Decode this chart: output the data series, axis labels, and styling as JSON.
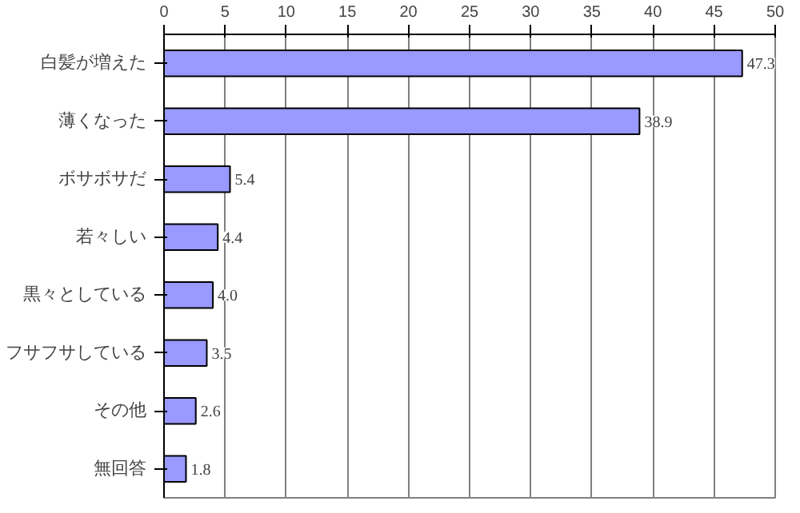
{
  "chart_data": {
    "type": "bar",
    "orientation": "horizontal",
    "categories": [
      "白髪が増えた",
      "薄くなった",
      "ボサボサだ",
      "若々しい",
      "黒々としている",
      "フサフサしている",
      "その他",
      "無回答"
    ],
    "values": [
      47.3,
      38.9,
      5.4,
      4.4,
      4.0,
      3.5,
      2.6,
      1.8
    ],
    "color": "#9999ff",
    "xlim": [
      0,
      50
    ],
    "xticks": [
      0,
      5,
      10,
      15,
      20,
      25,
      30,
      35,
      40,
      45,
      50
    ],
    "grid": "x",
    "value_labels": [
      "47.3",
      "38.9",
      "5.4",
      "4.4",
      "4.0",
      "3.5",
      "2.6",
      "1.8"
    ]
  }
}
